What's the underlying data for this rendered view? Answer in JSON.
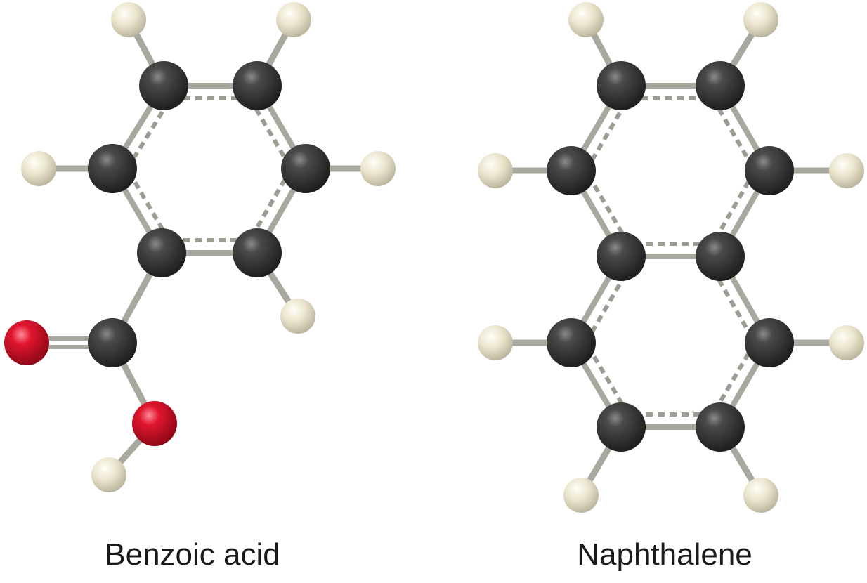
{
  "molecules": [
    {
      "name": "Benzoic acid",
      "atom_colors": {
        "C": "#2b2b2b",
        "H": "#e8e2cc",
        "O": "#d0102a"
      }
    },
    {
      "name": "Naphthalene",
      "atom_colors": {
        "C": "#2b2b2b",
        "H": "#e8e2cc"
      }
    }
  ],
  "bond_color": "#a9a89f"
}
